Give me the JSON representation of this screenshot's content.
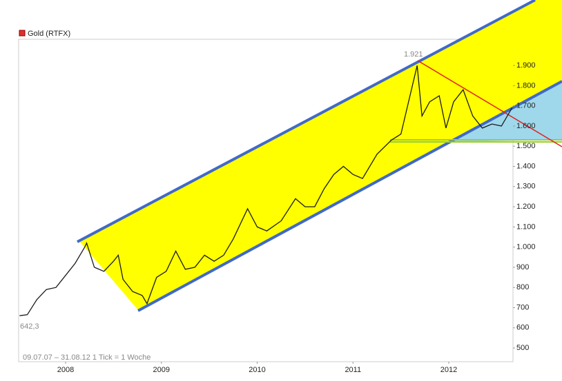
{
  "chart_data": {
    "type": "line",
    "legend": "Gold (RTFX)",
    "legend_color": "#e0302b",
    "annotations": {
      "high": "1.921",
      "low": "642,3",
      "footer": "09.07.07 – 31.08.12   1 Tick = 1 Woche"
    },
    "x": [
      2007.52,
      2007.6,
      2007.7,
      2007.8,
      2007.9,
      2008.0,
      2008.1,
      2008.2,
      2008.22,
      2008.3,
      2008.4,
      2008.5,
      2008.55,
      2008.6,
      2008.7,
      2008.8,
      2008.85,
      2008.95,
      2009.05,
      2009.15,
      2009.25,
      2009.35,
      2009.45,
      2009.55,
      2009.65,
      2009.75,
      2009.9,
      2010.0,
      2010.1,
      2010.25,
      2010.4,
      2010.5,
      2010.6,
      2010.7,
      2010.8,
      2010.9,
      2011.0,
      2011.1,
      2011.25,
      2011.4,
      2011.5,
      2011.6,
      2011.67,
      2011.72,
      2011.8,
      2011.9,
      2011.97,
      2012.05,
      2012.15,
      2012.25,
      2012.35,
      2012.45,
      2012.55,
      2012.66
    ],
    "values": [
      660,
      665,
      740,
      790,
      800,
      860,
      920,
      1000,
      1020,
      900,
      880,
      930,
      960,
      840,
      780,
      760,
      720,
      850,
      880,
      980,
      890,
      900,
      960,
      930,
      960,
      1040,
      1190,
      1100,
      1080,
      1130,
      1240,
      1200,
      1200,
      1290,
      1360,
      1400,
      1360,
      1340,
      1460,
      1530,
      1560,
      1760,
      1900,
      1650,
      1720,
      1750,
      1590,
      1720,
      1780,
      1650,
      1590,
      1610,
      1600,
      1690
    ],
    "color": "#1a1a1a",
    "xlim": [
      2007.51,
      2012.67
    ],
    "xticks": [
      2008,
      2009,
      2010,
      2011,
      2012
    ],
    "ylim": [
      432,
      2030
    ],
    "yticks": [
      500,
      600,
      700,
      800,
      900,
      {
        "value": 1000,
        "label": "1.000"
      },
      {
        "value": 1100,
        "label": "1.100"
      },
      {
        "value": 1200,
        "label": "1.200"
      },
      {
        "value": 1300,
        "label": "1.300"
      },
      {
        "value": 1400,
        "label": "1.400"
      },
      {
        "value": 1500,
        "label": "1.500"
      },
      {
        "value": 1600,
        "label": "1.600"
      },
      {
        "value": 1700,
        "label": "1.700"
      },
      {
        "value": 1800,
        "label": "1.800"
      },
      {
        "value": 1900,
        "label": "1.900"
      }
    ]
  }
}
